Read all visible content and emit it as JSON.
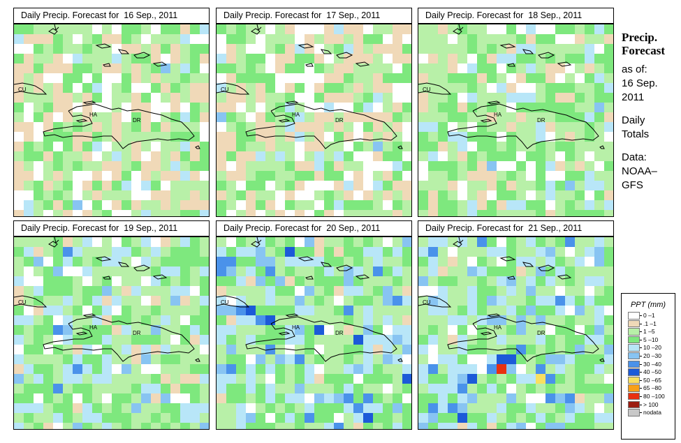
{
  "panels": [
    {
      "title": "Daily Precip. Forecast for  16 Sep., 2011",
      "seed": 16
    },
    {
      "title": "Daily Precip. Forecast for  17 Sep., 2011",
      "seed": 17
    },
    {
      "title": "Daily Precip. Forecast for  18 Sep., 2011",
      "seed": 18
    },
    {
      "title": "Daily Precip. Forecast for  19 Sep., 2011",
      "seed": 19
    },
    {
      "title": "Daily Precip. Forecast for  20 Sep., 2011",
      "seed": 20
    },
    {
      "title": "Daily Precip. Forecast for  21 Sep., 2011",
      "seed": 21
    }
  ],
  "place_labels": {
    "cuba": "CU",
    "haiti": "HA",
    "dominican_republic": "DR"
  },
  "sidebar": {
    "title_line1": "Precip.",
    "title_line2": "Forecast",
    "asof_label": "as of:",
    "date_line1": "16 Sep.",
    "date_line2": "2011",
    "totals_line1": "Daily",
    "totals_line2": "Totals",
    "data_label": "Data:",
    "source_line1": "NOAA–",
    "source_line2": "GFS"
  },
  "legend": {
    "title": "PPT (mm)",
    "items": [
      {
        "label": "0 –1",
        "color": "#ffffff"
      },
      {
        "label": ".1 –1",
        "color": "#f0d9b8"
      },
      {
        "label": "1 –5",
        "color": "#b8f0a8"
      },
      {
        "label": "5 –10",
        "color": "#7ee87e"
      },
      {
        "label": "10 –20",
        "color": "#b8e6f8"
      },
      {
        "label": "20 –30",
        "color": "#88c4f2"
      },
      {
        "label": "30 –40",
        "color": "#4a92ea"
      },
      {
        "label": "40 –50",
        "color": "#1c5ad8"
      },
      {
        "label": "50 –65",
        "color": "#f8e060"
      },
      {
        "label": "65 –80",
        "color": "#f8a018"
      },
      {
        "label": "80 –100",
        "color": "#e83010"
      },
      {
        "label": "> 100",
        "color": "#9c1c10"
      },
      {
        "label": "nodata",
        "color": "#c8c8c8"
      }
    ]
  }
}
